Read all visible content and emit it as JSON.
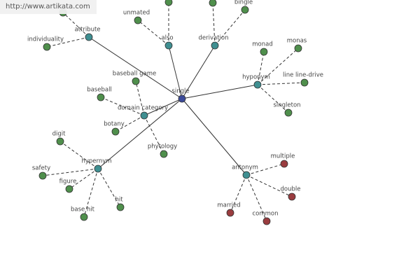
{
  "watermark": "http://www.artikata.com",
  "nodes": [
    {
      "label": "single"
    },
    {
      "label": "attribute"
    },
    {
      "label": "also"
    },
    {
      "label": "derivation"
    },
    {
      "label": "hyponym"
    },
    {
      "label": "domain category"
    },
    {
      "label": "hypernym"
    },
    {
      "label": "antonym"
    },
    {
      "label": "individuality"
    },
    {
      "label": "unmated"
    },
    {
      "label": "bingle"
    },
    {
      "label": "monad"
    },
    {
      "label": "monas"
    },
    {
      "label": "line line-drive"
    },
    {
      "label": "singleton"
    },
    {
      "label": "baseball game"
    },
    {
      "label": "baseball"
    },
    {
      "label": "botany"
    },
    {
      "label": "phytology"
    },
    {
      "label": "digit"
    },
    {
      "label": "safety"
    },
    {
      "label": "figure"
    },
    {
      "label": "base hit"
    },
    {
      "label": "hit"
    },
    {
      "label": "multiple"
    },
    {
      "label": "double"
    },
    {
      "label": "married"
    },
    {
      "label": "common"
    }
  ]
}
